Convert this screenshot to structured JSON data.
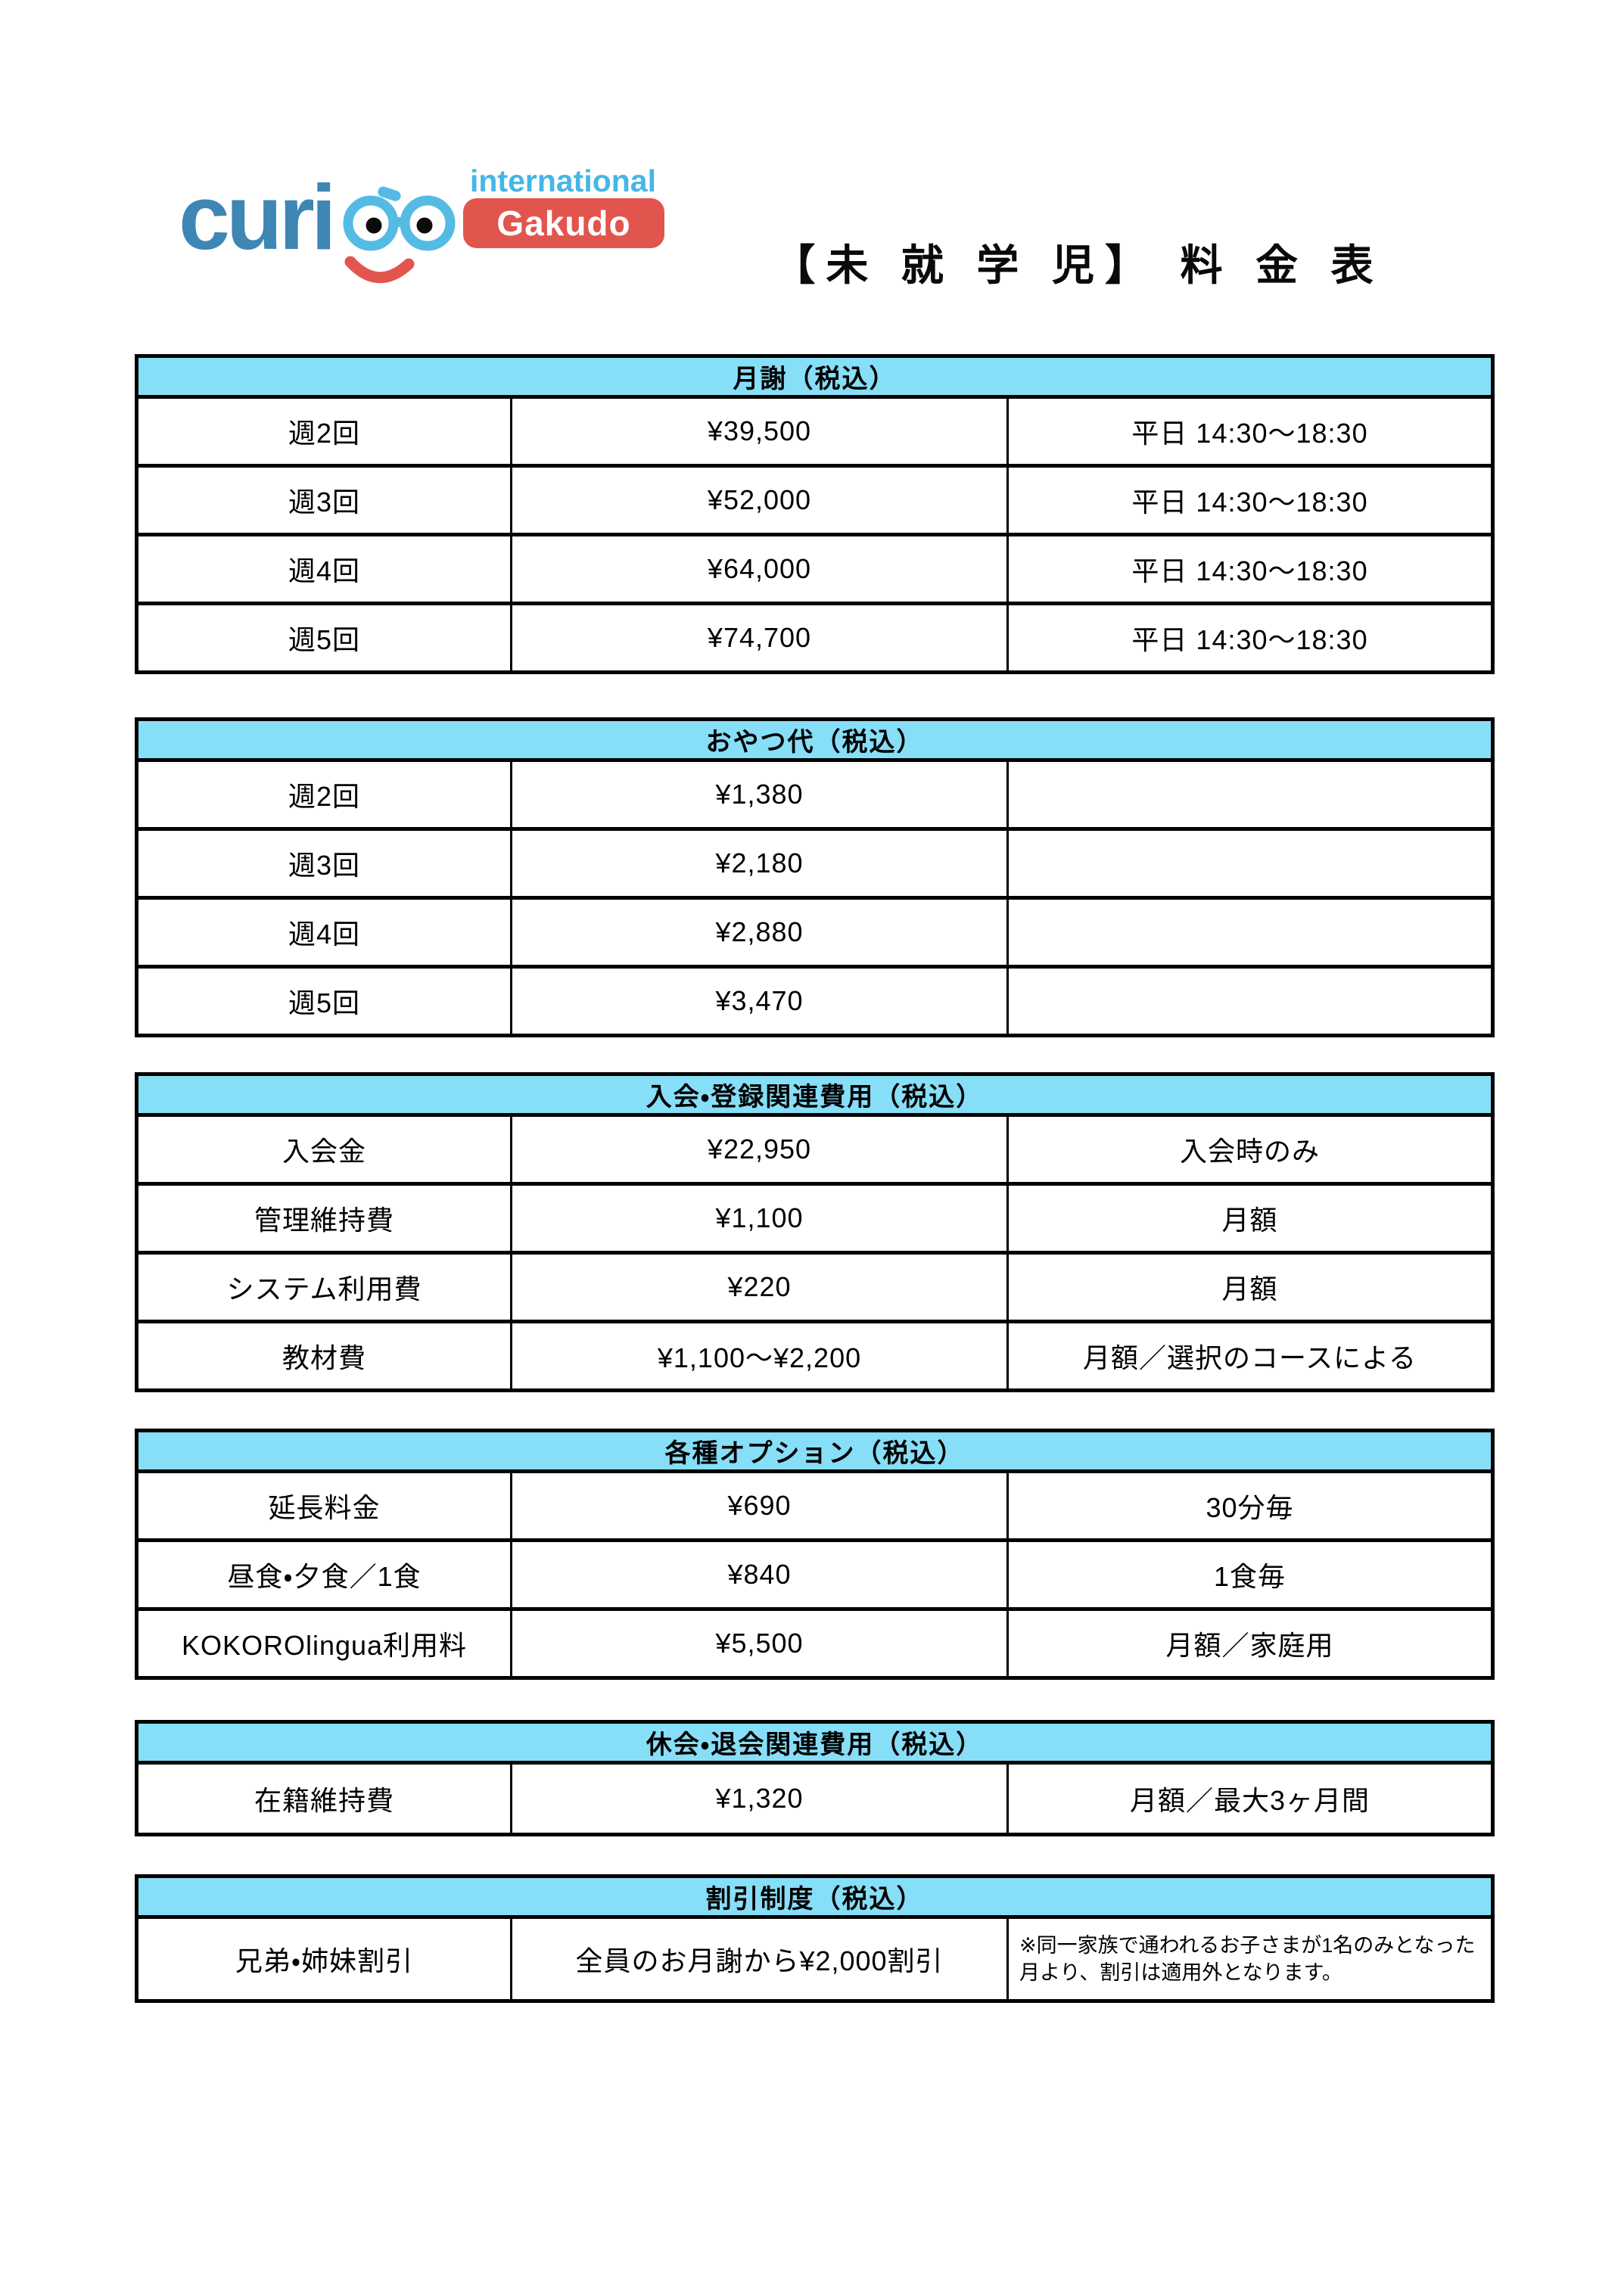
{
  "brand": {
    "wordmark_prefix": "curi",
    "international_label": "international",
    "gakudo_label": "Gakudo"
  },
  "title": "【未 就 学 児】 料 金 表",
  "colors": {
    "header_bg": "#87DEF7",
    "border": "#000000",
    "wordmark": "#3E86B3",
    "glasses": "#55BBE5",
    "smile": "#E2564F",
    "international": "#45B7E6",
    "gakudo_bg": "#E2544E",
    "gakudo_text": "#FFFFFF",
    "title_text": "#0A0A0A"
  },
  "tables": [
    {
      "id": "monthly-fee",
      "header": "月謝（税込）",
      "rows": [
        [
          "週2回",
          "¥39,500",
          "平日 14:30〜18:30"
        ],
        [
          "週3回",
          "¥52,000",
          "平日 14:30〜18:30"
        ],
        [
          "週4回",
          "¥64,000",
          "平日 14:30〜18:30"
        ],
        [
          "週5回",
          "¥74,700",
          "平日 14:30〜18:30"
        ]
      ]
    },
    {
      "id": "snack-fee",
      "header": "おやつ代（税込）",
      "rows": [
        [
          "週2回",
          "¥1,380",
          ""
        ],
        [
          "週3回",
          "¥2,180",
          ""
        ],
        [
          "週4回",
          "¥2,880",
          ""
        ],
        [
          "週5回",
          "¥3,470",
          ""
        ]
      ]
    },
    {
      "id": "enrollment-registration-fees",
      "header": "入会・登録関連費用（税込）",
      "rows": [
        [
          "入会金",
          "¥22,950",
          "入会時のみ"
        ],
        [
          "管理維持費",
          "¥1,100",
          "月額"
        ],
        [
          "システム利用費",
          "¥220",
          "月額"
        ],
        [
          "教材費",
          "¥1,100〜¥2,200",
          "月額／選択のコースによる"
        ]
      ]
    },
    {
      "id": "options",
      "header": "各種オプション（税込）",
      "rows": [
        [
          "延長料金",
          "¥690",
          "30分毎"
        ],
        [
          "昼食・夕食／1食",
          "¥840",
          "1食毎"
        ],
        [
          "KOKOROlingua利用料",
          "¥5,500",
          "月額／家庭用"
        ]
      ]
    },
    {
      "id": "suspension-withdrawal-fees",
      "header": "休会・退会関連費用（税込）",
      "rows": [
        [
          "在籍維持費",
          "¥1,320",
          "月額／最大3ヶ月間"
        ]
      ]
    },
    {
      "id": "discount-system",
      "header": "割引制度（税込）",
      "note_col": 2,
      "rows": [
        [
          "兄弟・姉妹割引",
          "全員のお月謝から¥2,000割引",
          "※同一家族で通われるお子さまが1名のみとなった月より、割引は適用外となります。"
        ]
      ]
    }
  ]
}
